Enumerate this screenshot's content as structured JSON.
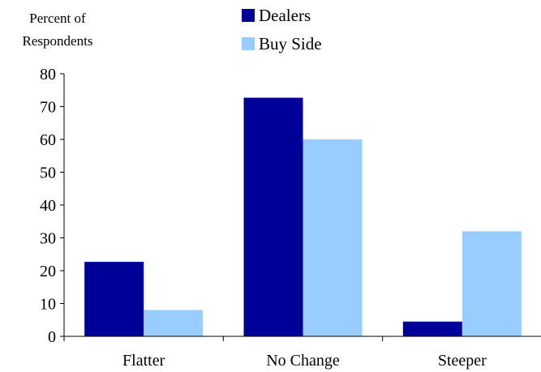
{
  "chart_data": {
    "type": "bar",
    "ylabel_lines": [
      "Percent of",
      "Respondents"
    ],
    "categories": [
      "Flatter",
      "No Change",
      "Steeper"
    ],
    "series": [
      {
        "name": "Dealers",
        "color": "#000099",
        "values": [
          22.7,
          72.7,
          4.5
        ]
      },
      {
        "name": "Buy Side",
        "color": "#99CCFF",
        "values": [
          8,
          60,
          32
        ]
      }
    ],
    "ylim": [
      0,
      80
    ],
    "yticks": [
      0,
      10,
      20,
      30,
      40,
      50,
      60,
      70,
      80
    ],
    "grid": false,
    "legend_position": "top-center"
  }
}
